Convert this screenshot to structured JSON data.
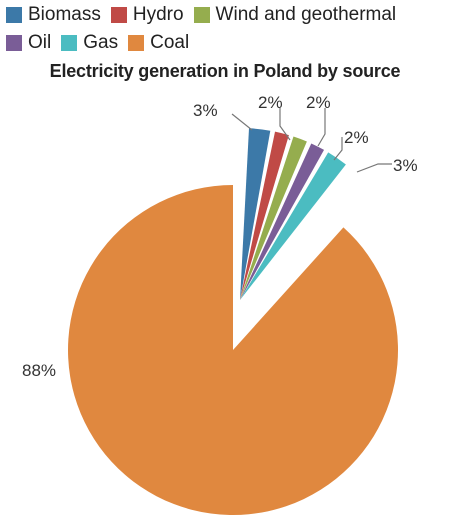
{
  "chart_data": {
    "type": "pie",
    "title": "Electricity generation in Poland by source",
    "legend_position": "top",
    "slices": [
      {
        "name": "Biomass",
        "value": 3,
        "label": "3%",
        "color": "#3c79a8"
      },
      {
        "name": "Hydro",
        "value": 2,
        "label": "2%",
        "color": "#c04a46"
      },
      {
        "name": "Wind and geothermal",
        "value": 2,
        "label": "2%",
        "color": "#95ad4e"
      },
      {
        "name": "Oil",
        "value": 2,
        "label": "2%",
        "color": "#7a5d97"
      },
      {
        "name": "Gas",
        "value": 3,
        "label": "3%",
        "color": "#4bbcc1"
      },
      {
        "name": "Coal",
        "value": 88,
        "label": "88%",
        "color": "#e0883f"
      }
    ]
  }
}
